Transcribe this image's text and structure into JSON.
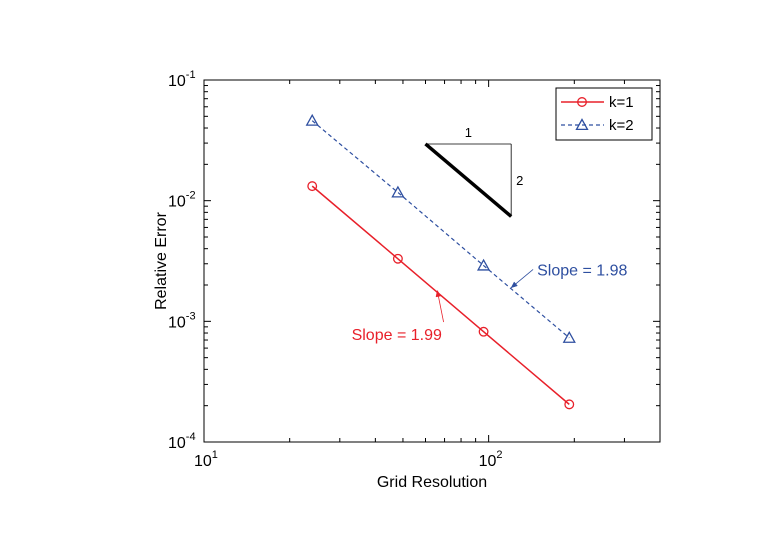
{
  "chart_data": {
    "type": "line",
    "title": "",
    "xlabel": "Grid Resolution",
    "ylabel": "Relative Error",
    "xscale": "log",
    "yscale": "log",
    "xlim": [
      10,
      400
    ],
    "ylim": [
      0.0001,
      0.1
    ],
    "grid": false,
    "x_ticks": [
      {
        "base": "10",
        "exp": "1"
      },
      {
        "base": "10",
        "exp": "2"
      }
    ],
    "y_ticks": [
      {
        "base": "10",
        "exp": "-4"
      },
      {
        "base": "10",
        "exp": "-3"
      },
      {
        "base": "10",
        "exp": "-2"
      },
      {
        "base": "10",
        "exp": "-1"
      }
    ],
    "series": [
      {
        "name": "k=1",
        "color": "#e8202a",
        "dash": "solid",
        "marker": "circle",
        "x": [
          24,
          48,
          96,
          192
        ],
        "values": [
          0.0132,
          0.0033,
          0.00082,
          0.000205
        ]
      },
      {
        "name": "k=2",
        "color": "#2e4fa0",
        "dash": "dashed",
        "marker": "triangle",
        "x": [
          24,
          48,
          96,
          192
        ],
        "values": [
          0.046,
          0.0117,
          0.0029,
          0.00073
        ]
      }
    ],
    "legend": {
      "position": "top-right",
      "labels": [
        "k=1",
        "k=2"
      ]
    },
    "slope_triangle": {
      "x": [
        60,
        120
      ],
      "y": [
        0.0295,
        0.0074
      ],
      "horizontal_label": "1",
      "vertical_label": "2"
    },
    "annotations": [
      {
        "text": "Slope = 1.98",
        "color": "#2e4fa0",
        "text_at": [
          148,
          0.0024
        ],
        "arrow_to": [
          120,
          0.0019
        ]
      },
      {
        "text": "Slope = 1.99",
        "color": "#e8202a",
        "text_at": [
          33,
          0.0007
        ],
        "arrow_to": [
          66,
          0.0018
        ]
      }
    ]
  }
}
